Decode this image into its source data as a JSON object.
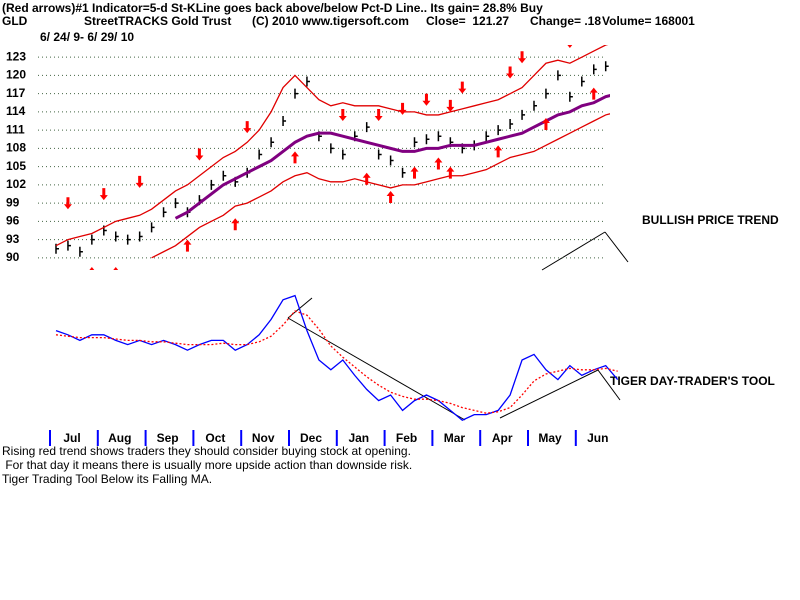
{
  "chart_data": [
    {
      "type": "line",
      "title": "(Red arrows)#1 Indicator=5-d St-KLine goes back above/below Pct-D Line.. Its gain= 28.8% Buy",
      "subtitle": [
        "GLD",
        "StreetTRACKS Gold Trust",
        "(C) 2010 www.tigersoft.com",
        "Close=  121.27",
        "Change= .18",
        "Volume= 168001"
      ],
      "date_range": "6/ 24/ 9- 6/ 29/ 10",
      "annotation": "BULLISH PRICE TREND",
      "ylim": [
        88,
        125
      ],
      "yticks": [
        90,
        93,
        96,
        99,
        102,
        105,
        108,
        111,
        114,
        117,
        120,
        123
      ],
      "grid": true,
      "series": [
        {
          "style": "bars",
          "color": "#000000",
          "values": [
            91.5,
            92,
            91,
            93,
            94.5,
            93.5,
            93,
            93.5,
            95,
            97.5,
            99,
            97.5,
            99.5,
            102,
            103.5,
            102.5,
            104,
            107,
            109,
            112.5,
            117,
            119,
            110,
            108,
            107,
            110,
            111.5,
            107,
            106,
            104,
            109,
            109.5,
            110,
            109,
            108,
            108.5,
            110,
            111,
            112,
            113.5,
            115,
            117,
            120,
            116.5,
            119,
            121,
            121.5,
            121.3
          ]
        },
        {
          "style": "thick",
          "color": "#800080",
          "values": [
            null,
            null,
            null,
            null,
            null,
            null,
            null,
            null,
            null,
            null,
            96.5,
            97.5,
            99,
            100.5,
            102,
            103,
            104,
            105,
            106,
            107.5,
            109,
            110,
            110.5,
            110.5,
            110,
            109.5,
            109,
            108.5,
            108,
            107.5,
            107.5,
            108,
            108,
            108.5,
            108.5,
            108.5,
            109,
            109.5,
            110,
            110.5,
            111.5,
            112.5,
            113.5,
            114,
            115,
            115.5,
            116.5,
            117
          ]
        },
        {
          "style": "thin",
          "color": "#e00000",
          "values": [
            92,
            93,
            93.5,
            94,
            95,
            96,
            96.5,
            97,
            98,
            99.5,
            101,
            102,
            103.5,
            105,
            106.5,
            107.5,
            109,
            111,
            114,
            118,
            120,
            118,
            116,
            115,
            115.5,
            115,
            115,
            115,
            114.5,
            114,
            114,
            113.5,
            113.5,
            114,
            114.5,
            115,
            115.5,
            116,
            117,
            118,
            120,
            122,
            122.5,
            122,
            123,
            124,
            125,
            125.5
          ]
        },
        {
          "style": "thin",
          "color": "#e00000",
          "values": [
            null,
            null,
            null,
            null,
            null,
            null,
            null,
            null,
            90,
            91,
            92,
            93.5,
            95,
            96,
            97,
            98.5,
            99,
            100,
            101,
            102.5,
            103.5,
            104,
            103,
            102.5,
            102.5,
            103,
            102.5,
            102,
            101.5,
            102,
            102,
            102.5,
            103,
            103.5,
            103.5,
            104,
            104.5,
            105.5,
            106.5,
            107,
            107.5,
            108.5,
            109.5,
            110.5,
            111.5,
            112.5,
            113.5,
            114
          ]
        }
      ],
      "arrow_color": "#ff0000",
      "down_arrows": [
        null,
        98,
        null,
        null,
        99.5,
        null,
        null,
        101.5,
        null,
        null,
        null,
        null,
        106,
        null,
        null,
        null,
        110.5,
        null,
        null,
        null,
        null,
        null,
        null,
        null,
        112.5,
        null,
        null,
        112.5,
        null,
        113.5,
        null,
        115,
        null,
        114,
        117,
        null,
        null,
        null,
        119.5,
        122,
        null,
        null,
        null,
        124.5,
        null,
        null,
        null,
        null
      ],
      "up_arrows": [
        null,
        null,
        null,
        88.5,
        null,
        88.5,
        null,
        null,
        null,
        null,
        null,
        93,
        null,
        null,
        null,
        96.5,
        null,
        null,
        null,
        null,
        107.5,
        null,
        null,
        null,
        null,
        null,
        104,
        null,
        101,
        null,
        105,
        null,
        106.5,
        105,
        null,
        null,
        null,
        108.5,
        null,
        null,
        null,
        113,
        null,
        null,
        null,
        118,
        null,
        null
      ]
    },
    {
      "type": "line",
      "annotation": "TIGER DAY-TRADER'S TOOL",
      "ylim": [
        0,
        100
      ],
      "categories": [
        "Jul",
        null,
        null,
        null,
        "Aug",
        null,
        null,
        null,
        "Sep",
        null,
        null,
        null,
        "Oct",
        null,
        null,
        null,
        "Nov",
        null,
        null,
        null,
        "Dec",
        null,
        null,
        null,
        "Jan",
        null,
        null,
        null,
        "Feb",
        null,
        null,
        null,
        "Mar",
        null,
        null,
        null,
        "Apr",
        null,
        null,
        null,
        "May",
        null,
        null,
        null,
        "Jun",
        null,
        null,
        null
      ],
      "series": [
        {
          "style": "solid",
          "color": "#0000ff",
          "values": [
            71,
            68,
            64,
            68,
            68,
            64,
            61,
            64,
            61,
            64,
            61,
            57,
            61,
            64,
            64,
            57,
            61,
            68,
            79,
            93,
            96,
            71,
            50,
            43,
            50,
            39,
            29,
            21,
            25,
            14,
            21,
            25,
            21,
            14,
            7,
            11,
            11,
            14,
            25,
            50,
            54,
            43,
            36,
            46,
            39,
            43,
            46,
            36
          ]
        },
        {
          "style": "dotted",
          "color": "#ff0000",
          "values": [
            68,
            67,
            66,
            66,
            66,
            65,
            64,
            64,
            63,
            63,
            62,
            61,
            61,
            61,
            62,
            61,
            61,
            63,
            67,
            75,
            85,
            82,
            72,
            60,
            52,
            45,
            38,
            32,
            27,
            24,
            22,
            22,
            21,
            19,
            16,
            14,
            12,
            13,
            16,
            25,
            35,
            40,
            42,
            44,
            43,
            43,
            44,
            42
          ]
        }
      ],
      "footer": [
        "Rising red trend shows traders they should consider buying stock at opening.",
        " For that day it means there is usually more upside action than downside risk.",
        "Tiger Trading Tool Below its Falling MA."
      ]
    }
  ]
}
